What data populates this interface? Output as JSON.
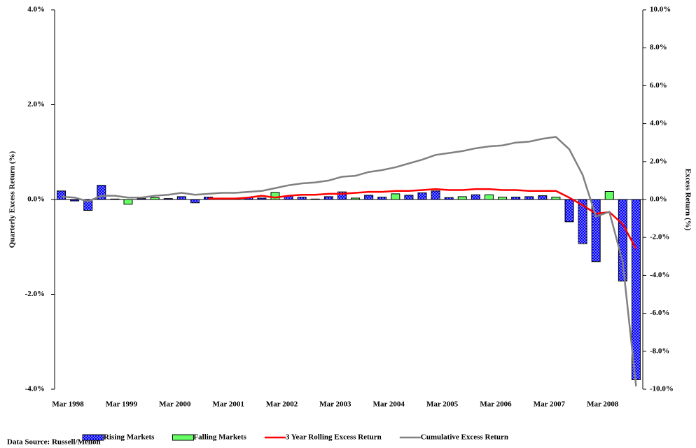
{
  "chart_data": {
    "type": "combo",
    "y_label": "Quarterly Excess Return (%)",
    "y2_label": "Excess Return (%)",
    "source": "Data Source: Russell/Mellon",
    "legend": "bottom",
    "categories": [
      "Mar 1998",
      null,
      null,
      null,
      "Mar 1999",
      null,
      null,
      null,
      "Mar 2000",
      null,
      null,
      null,
      "Mar 2001",
      null,
      null,
      null,
      "Mar 2002",
      null,
      null,
      null,
      "Mar 2003",
      null,
      null,
      null,
      "Mar 2004",
      null,
      null,
      null,
      "Mar 2005",
      null,
      null,
      null,
      "Mar 2006",
      null,
      null,
      null,
      "Mar 2007",
      null,
      null,
      null,
      "Mar 2008",
      null,
      null,
      null
    ],
    "ylim": [
      -4,
      4
    ],
    "yticks": [
      {
        "value": -4,
        "label": "-4.0%"
      },
      {
        "value": -2,
        "label": "-2.0%"
      },
      {
        "value": 0,
        "label": "0.0%"
      },
      {
        "value": 2,
        "label": "2.0%"
      },
      {
        "value": 4,
        "label": "4.0%"
      }
    ],
    "y2lim": [
      -10,
      10
    ],
    "y2ticks": [
      {
        "value": -10,
        "label": "-10.0%"
      },
      {
        "value": -8,
        "label": "-8.0%"
      },
      {
        "value": -6,
        "label": "-6.0%"
      },
      {
        "value": -4,
        "label": "-4.0%"
      },
      {
        "value": -2,
        "label": "-2.0%"
      },
      {
        "value": 0,
        "label": "0.0%"
      },
      {
        "value": 2,
        "label": "2.0%"
      },
      {
        "value": 4,
        "label": "4.0%"
      },
      {
        "value": 6,
        "label": "6.0%"
      },
      {
        "value": 8,
        "label": "8.0%"
      },
      {
        "value": 10,
        "label": "10.0%"
      }
    ],
    "series": [
      {
        "name": "Rising Markets",
        "type": "bar",
        "color": "#0000ff",
        "values": [
          0.18,
          -0.03,
          -0.23,
          0.3,
          0.01,
          null,
          0.02,
          null,
          0.02,
          0.06,
          -0.07,
          0.05,
          0.02,
          0.02,
          0.04,
          0.03,
          null,
          0.07,
          0.05,
          0.01,
          0.06,
          0.16,
          null,
          0.09,
          0.05,
          null,
          0.09,
          0.14,
          0.18,
          0.04,
          null,
          0.1,
          null,
          null,
          0.05,
          0.06,
          0.08,
          null,
          -0.47,
          -0.93,
          -1.31,
          null,
          -1.72,
          -3.8
        ]
      },
      {
        "name": "Falling Markets",
        "type": "bar",
        "color": "#66ff66",
        "values": [
          null,
          null,
          null,
          null,
          null,
          -0.1,
          null,
          0.04,
          null,
          null,
          null,
          null,
          null,
          null,
          null,
          null,
          0.15,
          null,
          null,
          null,
          null,
          null,
          0.03,
          null,
          null,
          0.12,
          null,
          null,
          null,
          null,
          0.06,
          null,
          0.1,
          0.05,
          null,
          null,
          null,
          0.05,
          null,
          null,
          null,
          0.17,
          null,
          null
        ]
      },
      {
        "name": "3 Year Rolling Excess Return",
        "type": "line",
        "axis": "y2",
        "color": "#ff0000",
        "values": [
          null,
          null,
          null,
          null,
          null,
          null,
          null,
          null,
          null,
          null,
          null,
          0.05,
          0.05,
          0.05,
          0.1,
          0.2,
          0.1,
          0.2,
          0.25,
          0.25,
          0.3,
          0.3,
          0.35,
          0.4,
          0.4,
          0.45,
          0.45,
          0.5,
          0.55,
          0.5,
          0.5,
          0.55,
          0.55,
          0.5,
          0.5,
          0.45,
          0.45,
          0.45,
          0.1,
          -0.3,
          -0.75,
          -0.66,
          -1.3,
          -2.6
        ]
      },
      {
        "name": "Cumulative Excess Return",
        "type": "line",
        "axis": "y2",
        "color": "#808080",
        "values": [
          0.15,
          0.1,
          -0.1,
          0.2,
          0.2,
          0.1,
          0.1,
          0.2,
          0.25,
          0.35,
          0.25,
          0.3,
          0.35,
          0.35,
          0.4,
          0.45,
          0.6,
          0.75,
          0.85,
          0.9,
          1.0,
          1.2,
          1.25,
          1.45,
          1.55,
          1.7,
          1.9,
          2.1,
          2.35,
          2.45,
          2.55,
          2.7,
          2.8,
          2.85,
          3.0,
          3.05,
          3.2,
          3.3,
          2.65,
          1.3,
          -0.9,
          -0.65,
          -3.3,
          -9.85
        ]
      }
    ]
  }
}
